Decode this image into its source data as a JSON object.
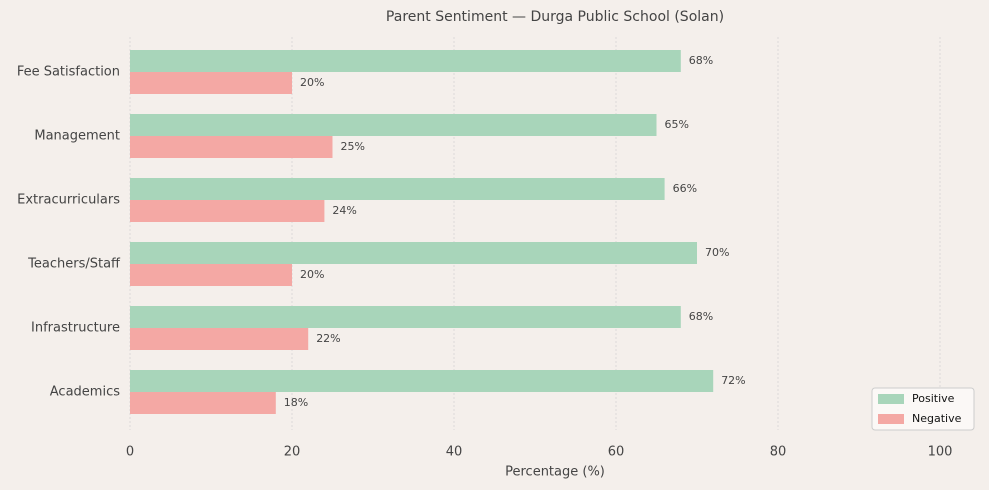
{
  "chart_data": {
    "type": "hbar",
    "title": "Parent Sentiment — Durga Public School (Solan)",
    "x_label": "Percentage (%)",
    "categories": [
      "Fee Satisfaction",
      "Management",
      "Extracurriculars",
      "Teachers/Staff",
      "Infrastructure",
      "Academics"
    ],
    "series": [
      {
        "name": "Positive",
        "color": "#a8d5ba",
        "values": [
          68,
          65,
          66,
          70,
          68,
          72
        ],
        "value_labels": [
          "68%",
          "65%",
          "66%",
          "70%",
          "68%",
          "72%"
        ]
      },
      {
        "name": "Negative",
        "color": "#f4a8a4",
        "values": [
          20,
          25,
          24,
          20,
          22,
          18
        ],
        "value_labels": [
          "20%",
          "25%",
          "24%",
          "20%",
          "22%",
          "18%"
        ]
      }
    ],
    "xlim": [
      0,
      105
    ],
    "xticks": [
      0,
      20,
      40,
      60,
      80,
      100
    ],
    "grid": true,
    "legend": "lower right"
  }
}
